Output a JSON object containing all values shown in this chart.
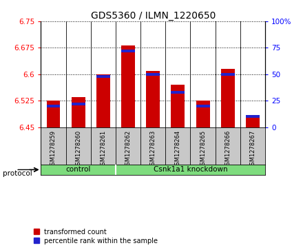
{
  "title": "GDS5360 / ILMN_1220650",
  "samples": [
    "GSM1278259",
    "GSM1278260",
    "GSM1278261",
    "GSM1278262",
    "GSM1278263",
    "GSM1278264",
    "GSM1278265",
    "GSM1278266",
    "GSM1278267"
  ],
  "transformed_counts": [
    6.525,
    6.535,
    6.6,
    6.682,
    6.61,
    6.57,
    6.525,
    6.615,
    6.48
  ],
  "percentile_ranks": [
    20,
    22,
    48,
    72,
    50,
    33,
    20,
    50,
    10
  ],
  "ymin": 6.45,
  "ymax": 6.75,
  "yticks": [
    6.45,
    6.525,
    6.6,
    6.675,
    6.75
  ],
  "ytick_labels": [
    "6.45",
    "6.525",
    "6.6",
    "6.675",
    "6.75"
  ],
  "right_yticks": [
    0,
    25,
    50,
    75,
    100
  ],
  "right_ytick_labels": [
    "0",
    "25",
    "50",
    "75",
    "100%"
  ],
  "bar_color": "#cc0000",
  "percentile_color": "#2222cc",
  "n_control": 3,
  "control_label": "control",
  "knockdown_label": "Csnk1a1 knockdown",
  "protocol_label": "protocol",
  "group_color": "#7edc7e",
  "legend_red_label": "transformed count",
  "legend_blue_label": "percentile rank within the sample",
  "bar_width": 0.55,
  "xlabel_area_color": "#c8c8c8",
  "grid_linestyle": "dotted"
}
